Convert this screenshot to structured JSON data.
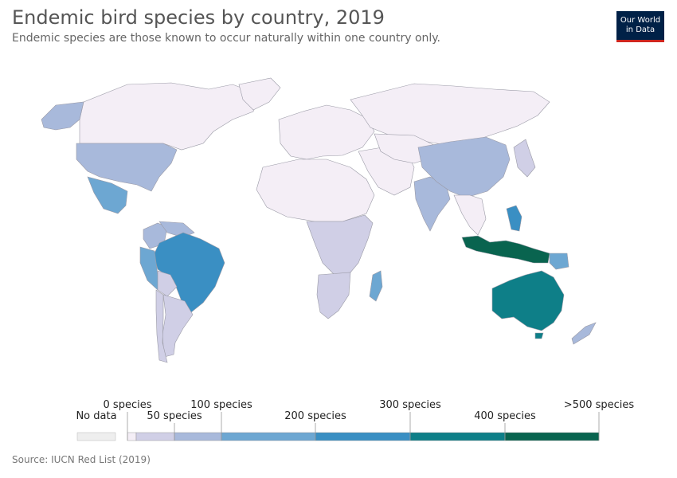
{
  "title": "Endemic bird species by country, 2019",
  "subtitle": "Endemic species are those known to occur naturally within one country only.",
  "logo": {
    "line1": "Our World",
    "line2": "in Data"
  },
  "source": "Source: IUCN Red List (2019)",
  "colors": {
    "no_data": "#eeeeee",
    "bin0": "#f4eef6",
    "bin1": "#d0cfe6",
    "bin2": "#a8b9db",
    "bin3": "#6da7d2",
    "bin4": "#3a8fc3",
    "bin5": "#0e7f88",
    "bin6": "#09644f",
    "border": "#9a9aa6"
  },
  "legend": {
    "no_data_label": "No data",
    "ticks": [
      {
        "value": 0,
        "label": "0 species",
        "row": "top"
      },
      {
        "value": 50,
        "label": "50 species",
        "row": "bottom"
      },
      {
        "value": 100,
        "label": "100 species",
        "row": "top"
      },
      {
        "value": 200,
        "label": "200 species",
        "row": "bottom"
      },
      {
        "value": 300,
        "label": "300 species",
        "row": "top"
      },
      {
        "value": 400,
        "label": "400 species",
        "row": "bottom"
      },
      {
        "value": 500,
        "label": ">500 species",
        "row": "top"
      }
    ]
  },
  "chart_data": {
    "type": "choropleth",
    "bins": [
      "0",
      "1-50",
      "50-100",
      "100-200",
      "200-300",
      "300-400",
      "400-500",
      ">500"
    ],
    "regions": [
      {
        "name": "Canada",
        "bin": 0
      },
      {
        "name": "Alaska",
        "bin": 2
      },
      {
        "name": "United States",
        "bin": 2
      },
      {
        "name": "Mexico",
        "bin": 3
      },
      {
        "name": "Colombia",
        "bin": 2
      },
      {
        "name": "Brazil",
        "bin": 4
      },
      {
        "name": "Peru",
        "bin": 3
      },
      {
        "name": "Australia",
        "bin": 5
      },
      {
        "name": "Indonesia",
        "bin": 6
      },
      {
        "name": "Papua New Guinea",
        "bin": 3
      },
      {
        "name": "Philippines",
        "bin": 4
      },
      {
        "name": "China",
        "bin": 2
      },
      {
        "name": "India",
        "bin": 2
      },
      {
        "name": "Madagascar",
        "bin": 3
      },
      {
        "name": "New Zealand",
        "bin": 2
      },
      {
        "name": "Russia",
        "bin": 0
      }
    ]
  }
}
